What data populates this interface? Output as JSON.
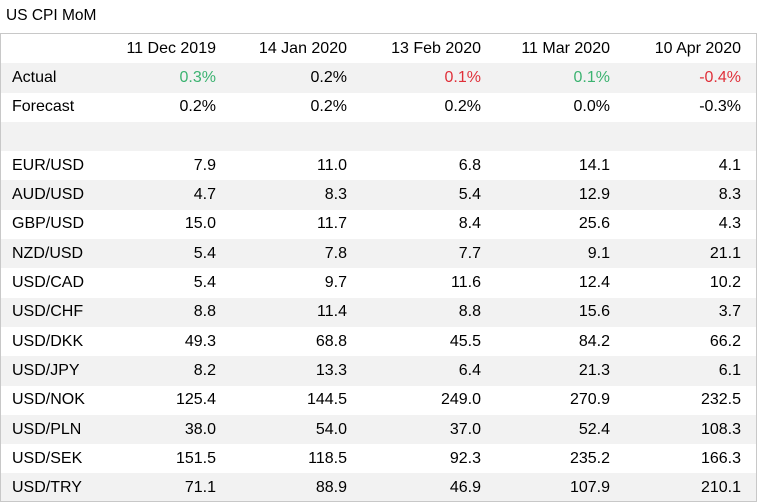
{
  "title": "US CPI MoM",
  "header": {
    "label": "",
    "dates": [
      "11 Dec 2019",
      "14 Jan 2020",
      "13 Feb 2020",
      "11 Mar 2020",
      "10 Apr 2020"
    ]
  },
  "actual": {
    "label": "Actual",
    "values": [
      "0.3%",
      "0.2%",
      "0.1%",
      "0.1%",
      "-0.4%"
    ]
  },
  "forecast": {
    "label": "Forecast",
    "values": [
      "0.2%",
      "0.2%",
      "0.2%",
      "0.0%",
      "-0.3%"
    ]
  },
  "pairs": [
    {
      "name": "EUR/USD",
      "values": [
        "7.9",
        "11.0",
        "6.8",
        "14.1",
        "4.1"
      ]
    },
    {
      "name": "AUD/USD",
      "values": [
        "4.7",
        "8.3",
        "5.4",
        "12.9",
        "8.3"
      ]
    },
    {
      "name": "GBP/USD",
      "values": [
        "15.0",
        "11.7",
        "8.4",
        "25.6",
        "4.3"
      ]
    },
    {
      "name": "NZD/USD",
      "values": [
        "5.4",
        "7.8",
        "7.7",
        "9.1",
        "21.1"
      ]
    },
    {
      "name": "USD/CAD",
      "values": [
        "5.4",
        "9.7",
        "11.6",
        "12.4",
        "10.2"
      ]
    },
    {
      "name": "USD/CHF",
      "values": [
        "8.8",
        "11.4",
        "8.8",
        "15.6",
        "3.7"
      ]
    },
    {
      "name": "USD/DKK",
      "values": [
        "49.3",
        "68.8",
        "45.5",
        "84.2",
        "66.2"
      ]
    },
    {
      "name": "USD/JPY",
      "values": [
        "8.2",
        "13.3",
        "6.4",
        "21.3",
        "6.1"
      ]
    },
    {
      "name": "USD/NOK",
      "values": [
        "125.4",
        "144.5",
        "249.0",
        "270.9",
        "232.5"
      ]
    },
    {
      "name": "USD/PLN",
      "values": [
        "38.0",
        "54.0",
        "37.0",
        "52.4",
        "108.3"
      ]
    },
    {
      "name": "USD/SEK",
      "values": [
        "151.5",
        "118.5",
        "92.3",
        "235.2",
        "166.3"
      ]
    },
    {
      "name": "USD/TRY",
      "values": [
        "71.1",
        "88.9",
        "46.9",
        "107.9",
        "210.1"
      ]
    }
  ],
  "colors": {
    "positive": "#3cb371",
    "negative": "#e0303a",
    "stripe": "#f2f2f2"
  }
}
